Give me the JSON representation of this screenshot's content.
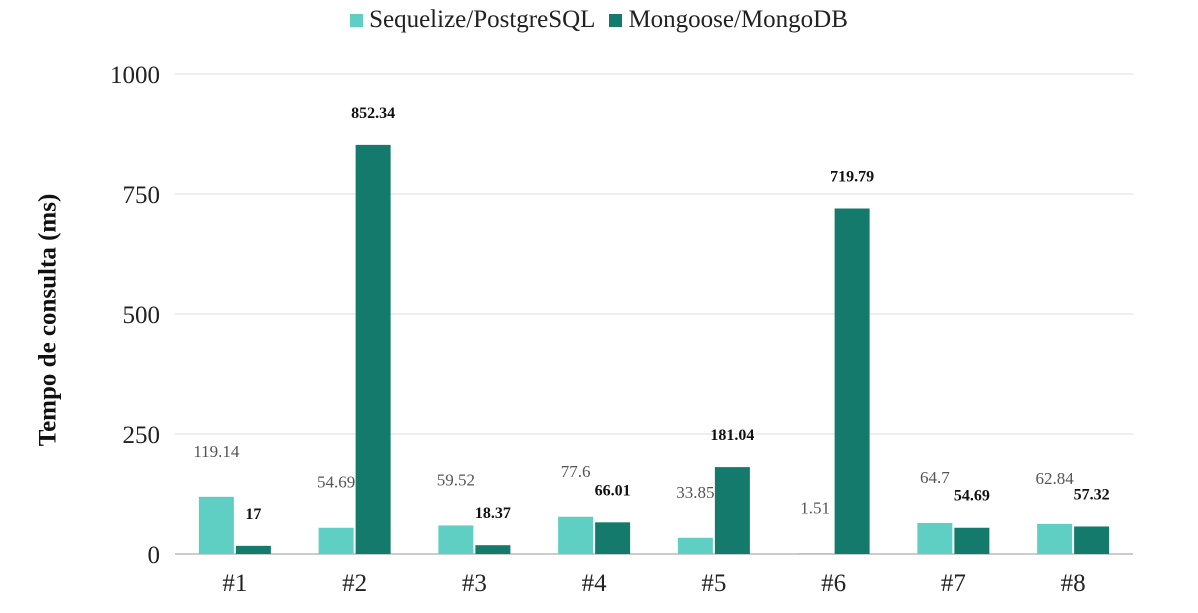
{
  "chart_data": {
    "type": "bar",
    "categories": [
      "#1",
      "#2",
      "#3",
      "#4",
      "#5",
      "#6",
      "#7",
      "#8"
    ],
    "series": [
      {
        "name": "Sequelize/PostgreSQL",
        "color": "#5ecfc2",
        "values": [
          119.14,
          54.69,
          59.52,
          77.6,
          33.85,
          1.51,
          64.7,
          62.84
        ],
        "labels": [
          "119.14",
          "54.69",
          "59.52",
          "77.6",
          "33.85",
          "1.51",
          "64.7",
          "62.84"
        ]
      },
      {
        "name": "Mongoose/MongoDB",
        "color": "#137a6c",
        "values": [
          17,
          852.34,
          18.37,
          66.01,
          181.04,
          719.79,
          54.69,
          57.32
        ],
        "labels": [
          "17",
          "852.34",
          "18.37",
          "66.01",
          "181.04",
          "719.79",
          "54.69",
          "57.32"
        ]
      }
    ],
    "ylabel": "Tempo de consulta (ms)",
    "xlabel": "",
    "ylim": [
      0,
      1000
    ],
    "yticks": [
      0,
      250,
      500,
      750,
      1000
    ],
    "grid": true,
    "legend_position": "top-center"
  }
}
